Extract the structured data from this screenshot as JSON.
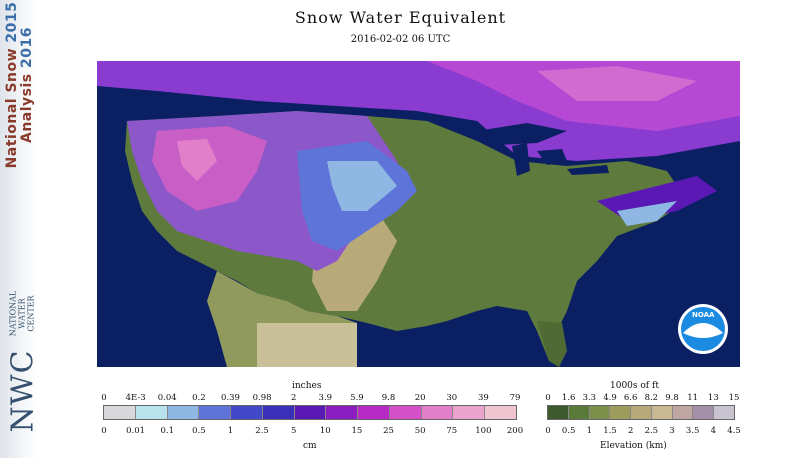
{
  "title": "Snow Water Equivalent",
  "datetime": "2016-02-02 06 UTC",
  "sidebar": {
    "title_line1": "National Snow",
    "title_line2": "Analysis",
    "years_line1": "2015",
    "years_line2": "2016",
    "logo_letters": "NWC",
    "logo_sub1": "NATIONAL",
    "logo_sub2": "WATER",
    "logo_sub3": "CENTER"
  },
  "noaa_logo": "NOAA",
  "swe_legend": {
    "top_unit": "inches",
    "bottom_unit": "cm",
    "inch_ticks": [
      "0",
      "4E-3",
      "0.04",
      "0.2",
      "0.39",
      "0.98",
      "2",
      "3.9",
      "5.9",
      "9.8",
      "20",
      "30",
      "39",
      "79"
    ],
    "cm_ticks": [
      "0",
      "0.01",
      "0.1",
      "0.5",
      "1",
      "2.5",
      "5",
      "10",
      "15",
      "25",
      "50",
      "75",
      "100",
      "200"
    ],
    "colors": [
      "#d7d7dc",
      "#b8e3ec",
      "#8fb7e3",
      "#5f74d9",
      "#4348c9",
      "#3a2fb8",
      "#5a18b4",
      "#8a1cc0",
      "#b828c4",
      "#d54fc6",
      "#e27fc9",
      "#e9a3cd",
      "#efc6cf"
    ]
  },
  "elevation_legend": {
    "top_unit": "1000s of ft",
    "bottom_unit": "Elevation (km)",
    "ft_ticks": [
      "0",
      "1.6",
      "3.3",
      "4.9",
      "6.6",
      "8.2",
      "9.8",
      "11",
      "13",
      "15"
    ],
    "km_ticks": [
      "0",
      "0.5",
      "1",
      "1.5",
      "2",
      "2.5",
      "3",
      "3.5",
      "4",
      "4.5"
    ],
    "colors": [
      "#3c5a2e",
      "#5a7a3a",
      "#7b8f4a",
      "#9c9d5c",
      "#b7aa78",
      "#c9b892",
      "#bfa6a0",
      "#a48fa8",
      "#c9c2cf"
    ]
  }
}
